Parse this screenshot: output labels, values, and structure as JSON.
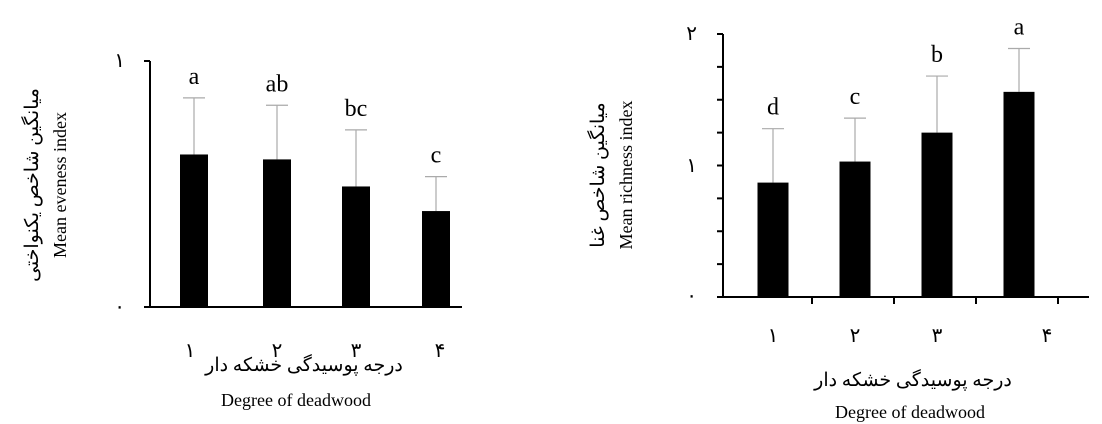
{
  "chart_data": [
    {
      "type": "bar",
      "categories": [
        "۱",
        "۲",
        "۳",
        "۴"
      ],
      "values": [
        0.62,
        0.6,
        0.49,
        0.39
      ],
      "errors": [
        0.23,
        0.22,
        0.23,
        0.14
      ],
      "significance_labels": [
        "a",
        "ab",
        "bc",
        "c"
      ],
      "ylabel_fa": "میانگین شاخص یکنواختی",
      "ylabel_en": "Mean eveness index",
      "xlabel_fa": "درجه پوسیدگی خشکه دار",
      "xlabel_en": "Degree of deadwood",
      "yticks": [
        "۰",
        "۱"
      ],
      "ylim": [
        0,
        1
      ],
      "bar_color": "#000000",
      "error_color": "#aaaaaa",
      "grid": false
    },
    {
      "type": "bar",
      "categories": [
        "۱",
        "۲",
        "۳",
        "۴"
      ],
      "values": [
        0.87,
        1.03,
        1.25,
        1.56
      ],
      "errors": [
        0.41,
        0.33,
        0.43,
        0.33
      ],
      "significance_labels": [
        "d",
        "c",
        "b",
        "a"
      ],
      "ylabel_fa": "میانگین شاخص غنا",
      "ylabel_en": "Mean richness index",
      "xlabel_fa": "درجه پوسیدگی خشکه دار",
      "xlabel_en": "Degree of deadwood",
      "yticks": [
        "۰",
        "۱",
        "۲"
      ],
      "ylim": [
        0,
        2
      ],
      "bar_color": "#000000",
      "error_color": "#aaaaaa",
      "grid": false
    }
  ]
}
